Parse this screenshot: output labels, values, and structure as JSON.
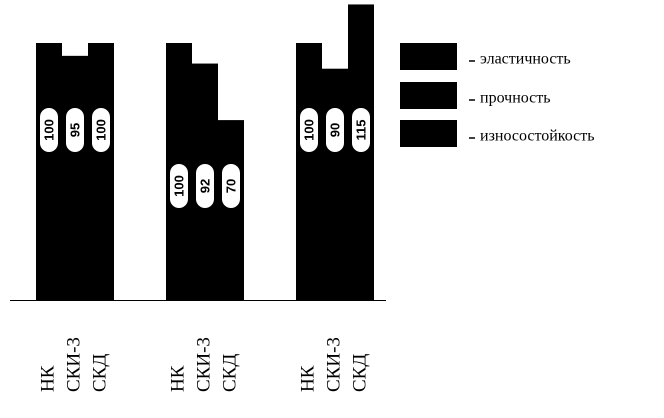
{
  "chart_data": {
    "type": "bar",
    "categories": [
      "НК",
      "СКИ-3",
      "СКД"
    ],
    "series": [
      {
        "name": "эластичность",
        "color": "#000000",
        "values": [
          100,
          95,
          100
        ]
      },
      {
        "name": "прочность",
        "color": "#000000",
        "values": [
          100,
          92,
          70
        ]
      },
      {
        "name": "износостойкость",
        "color": "#000000",
        "values": [
          100,
          90,
          115
        ]
      }
    ]
  }
}
